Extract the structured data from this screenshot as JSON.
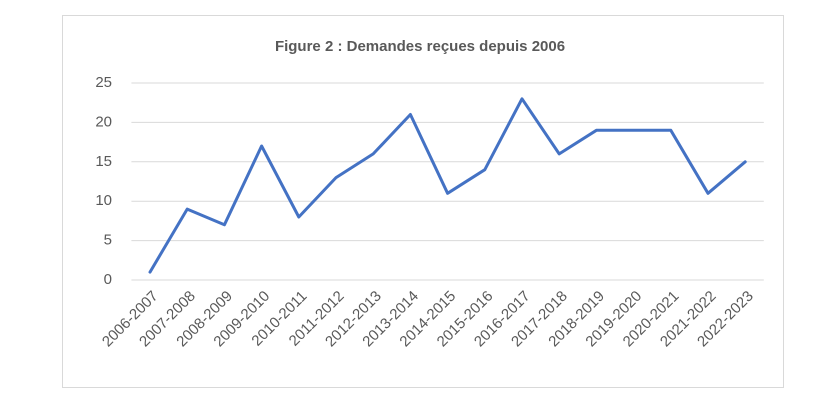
{
  "chart_data": {
    "type": "line",
    "title": "Figure 2 : Demandes reçues depuis 2006",
    "categories": [
      "2006-2007",
      "2007-2008",
      "2008-2009",
      "2009-2010",
      "2010-2011",
      "2011-2012",
      "2012-2013",
      "2013-2014",
      "2014-2015",
      "2015-2016",
      "2016-2017",
      "2017-2018",
      "2018-2019",
      "2019-2020",
      "2020-2021",
      "2021-2022",
      "2022-2023"
    ],
    "values": [
      1,
      9,
      7,
      17,
      8,
      13,
      16,
      21,
      11,
      14,
      23,
      16,
      19,
      19,
      19,
      11,
      15
    ],
    "color": "#4472c4",
    "ylim": [
      0,
      25
    ],
    "yticks": [
      0,
      5,
      10,
      15,
      20,
      25
    ],
    "grid": true
  }
}
